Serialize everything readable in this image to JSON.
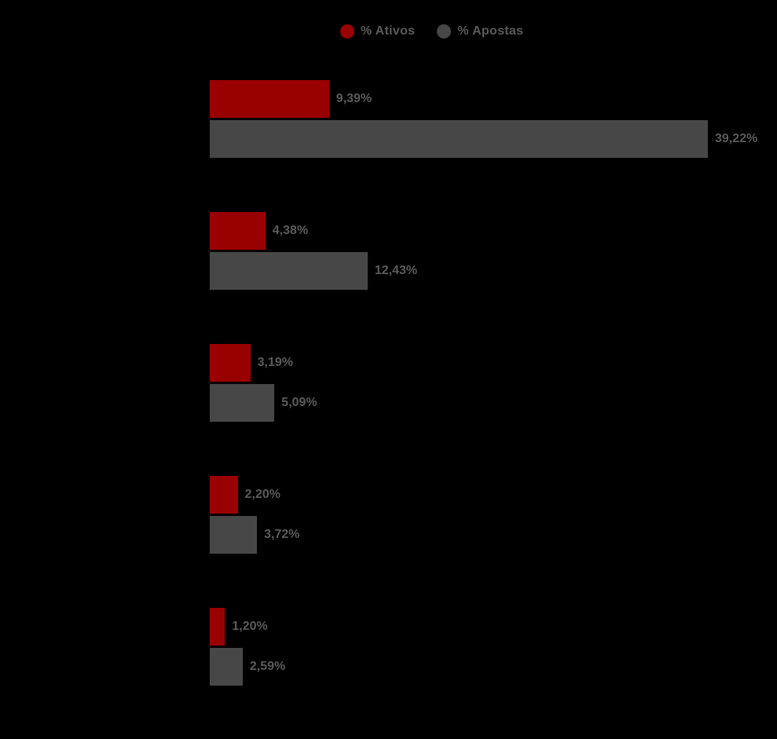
{
  "canvas": {
    "background": "#000000"
  },
  "legend": {
    "text_color": "#595959",
    "items": [
      {
        "label": "% Ativos",
        "color": "#990000"
      },
      {
        "label": "% Apostas",
        "color": "#474747"
      }
    ]
  },
  "chart_data": {
    "type": "bar",
    "orientation": "horizontal",
    "title": "",
    "xlabel": "",
    "ylabel": "",
    "xlim": [
      0,
      40
    ],
    "grid": false,
    "legend_position": "top-center",
    "data_label_color": "#595959",
    "series": [
      {
        "name": "% Ativos",
        "color": "#990000",
        "values": [
          9.39,
          4.38,
          3.19,
          2.2,
          1.2
        ],
        "data_labels": [
          "9,39%",
          "4,38%",
          "3,19%",
          "2,20%",
          "1,20%"
        ]
      },
      {
        "name": "% Apostas",
        "color": "#474747",
        "values": [
          39.22,
          12.43,
          5.09,
          3.72,
          2.59
        ],
        "data_labels": [
          "39,22%",
          "12,43%",
          "5,09%",
          "3,72%",
          "2,59%"
        ]
      }
    ]
  }
}
